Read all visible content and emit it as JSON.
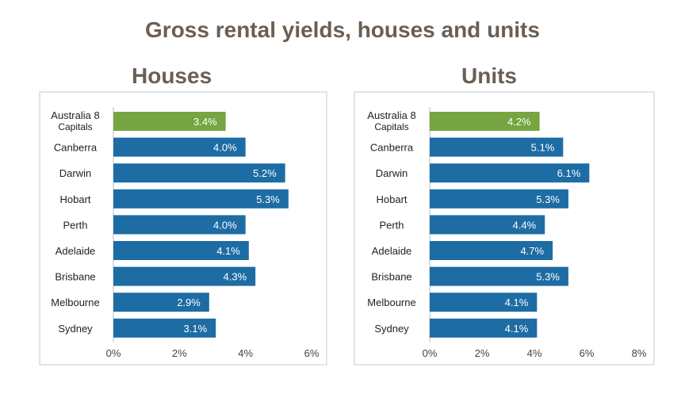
{
  "title": "Gross rental yields, houses and units",
  "colors": {
    "highlight": "#76a541",
    "bar": "#1d6ca4",
    "title": "#6b5e53"
  },
  "chart_data": [
    {
      "type": "bar",
      "orientation": "horizontal",
      "title": "Houses",
      "categories": [
        "Australia 8 Capitals",
        "Canberra",
        "Darwin",
        "Hobart",
        "Perth",
        "Adelaide",
        "Brisbane",
        "Melbourne",
        "Sydney"
      ],
      "values": [
        3.4,
        4.0,
        5.2,
        5.3,
        4.0,
        4.1,
        4.3,
        2.9,
        3.1
      ],
      "value_labels": [
        "3.4%",
        "4.0%",
        "5.2%",
        "5.3%",
        "4.0%",
        "4.1%",
        "4.3%",
        "2.9%",
        "3.1%"
      ],
      "xlim": [
        0,
        6
      ],
      "xticks": [
        "0%",
        "2%",
        "4%",
        "6%"
      ],
      "highlight_index": 0,
      "grid": false
    },
    {
      "type": "bar",
      "orientation": "horizontal",
      "title": "Units",
      "categories": [
        "Australia 8 Capitals",
        "Canberra",
        "Darwin",
        "Hobart",
        "Perth",
        "Adelaide",
        "Brisbane",
        "Melbourne",
        "Sydney"
      ],
      "values": [
        4.2,
        5.1,
        6.1,
        5.3,
        4.4,
        4.7,
        5.3,
        4.1,
        4.1
      ],
      "value_labels": [
        "4.2%",
        "5.1%",
        "6.1%",
        "5.3%",
        "4.4%",
        "4.7%",
        "5.3%",
        "4.1%",
        "4.1%"
      ],
      "xlim": [
        0,
        8
      ],
      "xticks": [
        "0%",
        "2%",
        "4%",
        "6%",
        "8%"
      ],
      "highlight_index": 0,
      "grid": false
    }
  ]
}
